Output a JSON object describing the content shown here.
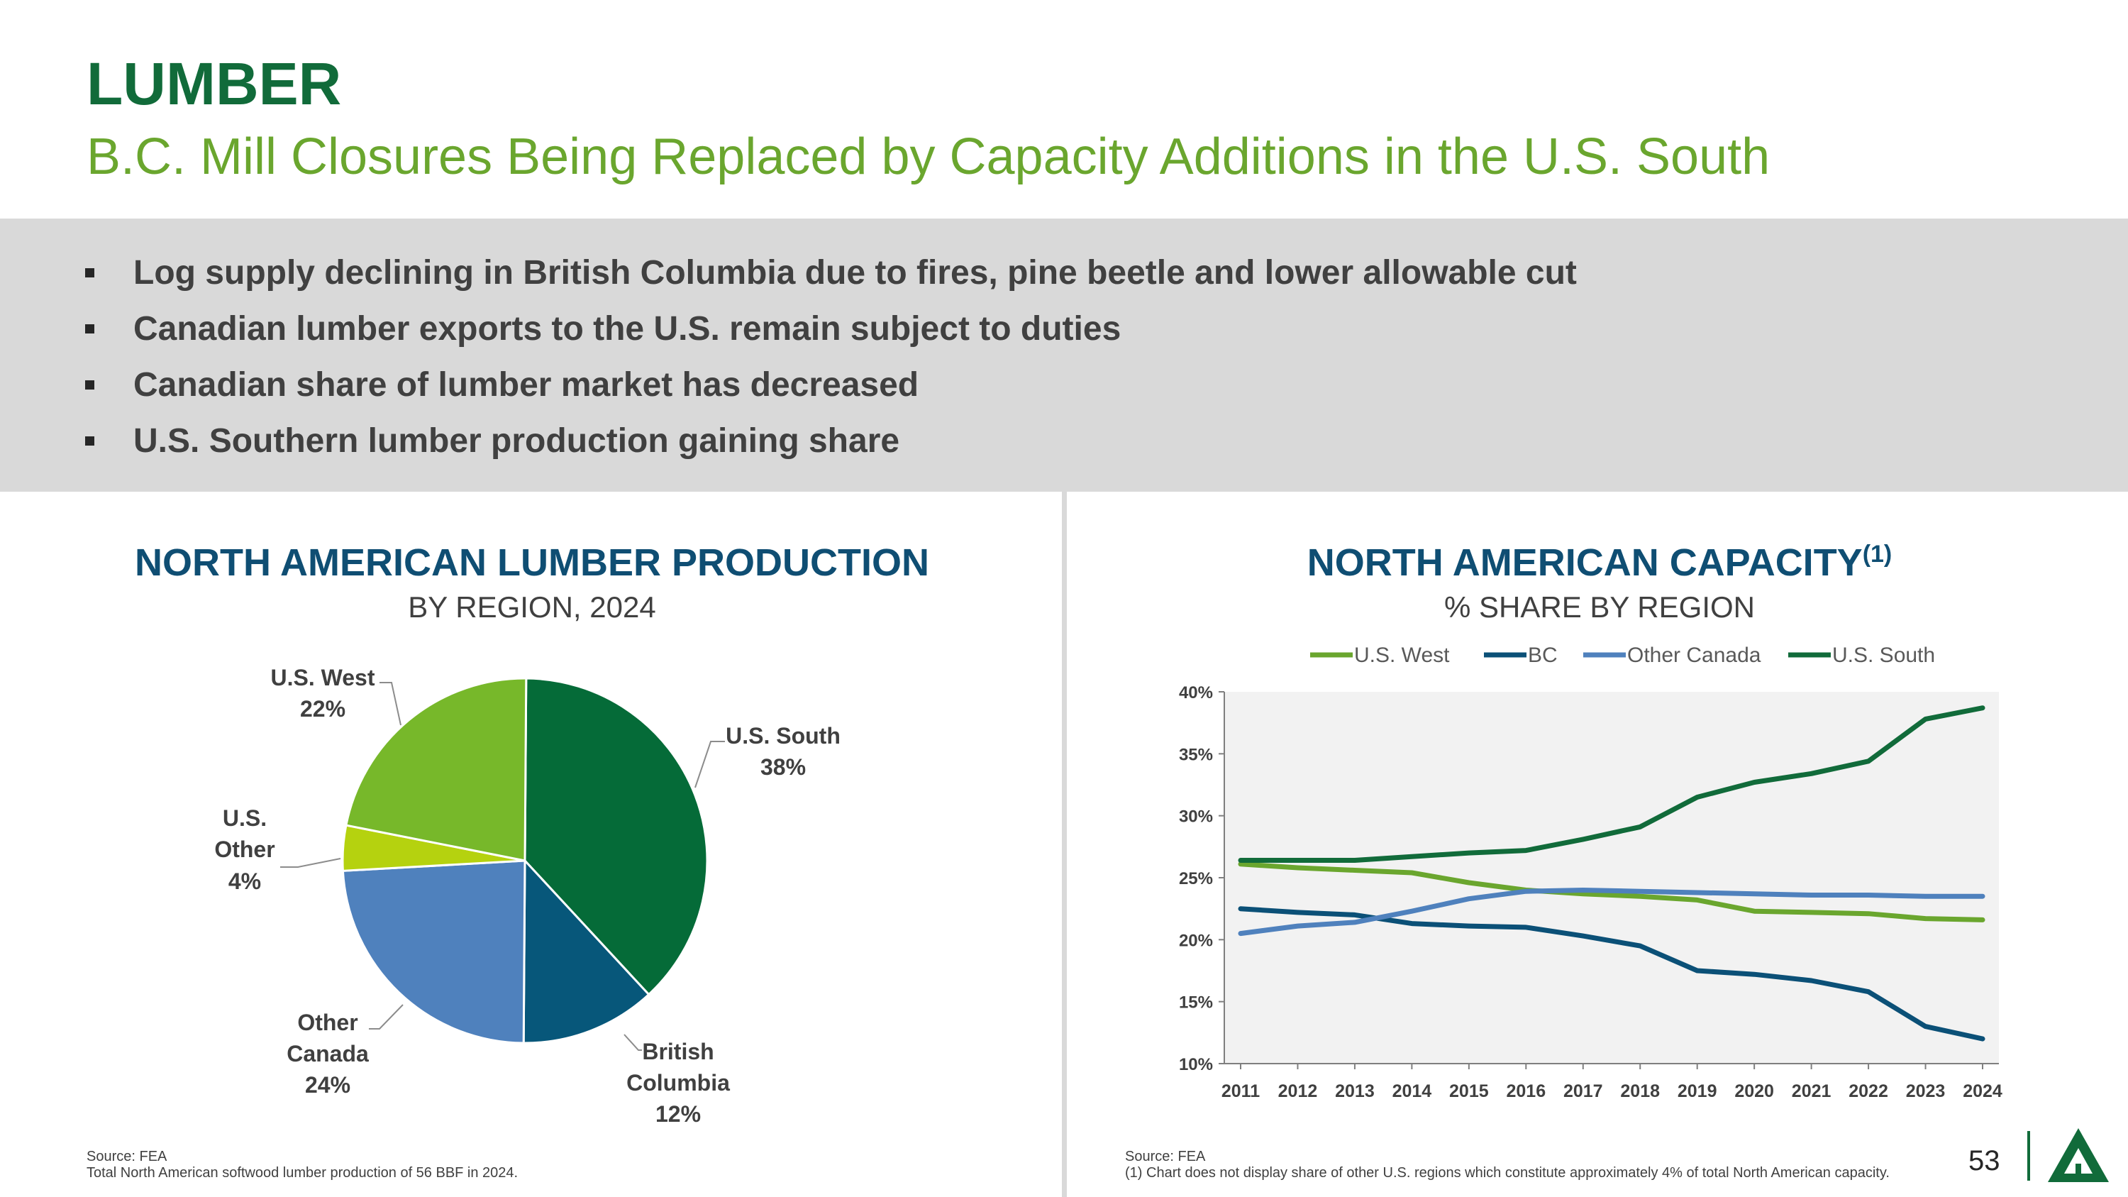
{
  "header": {
    "title": "LUMBER",
    "subtitle": "B.C. Mill Closures Being Replaced by Capacity Additions in the U.S. South"
  },
  "bullets": [
    "Log supply declining in British Columbia due to fires, pine beetle and lower allowable cut",
    "Canadian lumber exports to the U.S. remain subject to duties",
    "Canadian share of lumber market has decreased",
    "U.S. Southern lumber production gaining share"
  ],
  "left_panel": {
    "title": "NORTH AMERICAN LUMBER PRODUCTION",
    "subtitle": "BY REGION, 2024",
    "source": "Source: FEA",
    "note": "Total North American softwood lumber production of 56 BBF in 2024."
  },
  "right_panel": {
    "title": "NORTH AMERICAN CAPACITY",
    "title_sup": "(1)",
    "subtitle": "% SHARE BY REGION",
    "source": "Source: FEA",
    "note": "(1) Chart does not display share of other U.S. regions which constitute approximately 4% of total North American capacity."
  },
  "page_number": "53",
  "logo_icon": "tree-triangle-logo-icon",
  "chart_data": [
    {
      "type": "pie",
      "title": "NORTH AMERICAN LUMBER PRODUCTION",
      "subtitle": "BY REGION, 2024",
      "slices": [
        {
          "label": "U.S. South",
          "value": 38,
          "value_label": "38%",
          "color": "#056b38"
        },
        {
          "label": "British Columbia",
          "value": 12,
          "value_label": "12%",
          "color": "#07577a"
        },
        {
          "label": "Other Canada",
          "value": 24,
          "value_label": "24%",
          "color": "#4f81bd"
        },
        {
          "label": "U.S. Other",
          "value": 4,
          "value_label": "4%",
          "color": "#b5d20f"
        },
        {
          "label": "U.S. West",
          "value": 22,
          "value_label": "22%",
          "color": "#77b82a"
        }
      ]
    },
    {
      "type": "line",
      "title": "NORTH AMERICAN CAPACITY",
      "subtitle": "% SHARE BY REGION",
      "x": [
        "2011",
        "2012",
        "2013",
        "2014",
        "2015",
        "2016",
        "2017",
        "2018",
        "2019",
        "2020",
        "2021",
        "2022",
        "2023",
        "2024"
      ],
      "ylim": [
        10,
        40
      ],
      "yticks": [
        "10%",
        "15%",
        "20%",
        "25%",
        "30%",
        "35%",
        "40%"
      ],
      "legend_position": "top",
      "series": [
        {
          "name": "U.S. West",
          "color": "#6aa62e",
          "values": [
            26.1,
            25.8,
            25.6,
            25.4,
            24.6,
            24.0,
            23.7,
            23.5,
            23.2,
            22.3,
            22.2,
            22.1,
            21.7,
            21.6
          ]
        },
        {
          "name": "BC",
          "color": "#0b5077",
          "values": [
            22.5,
            22.2,
            22.0,
            21.3,
            21.1,
            21.0,
            20.3,
            19.5,
            17.5,
            17.2,
            16.7,
            15.8,
            13.0,
            12.0
          ]
        },
        {
          "name": "Other Canada",
          "color": "#4f81bd",
          "values": [
            20.5,
            21.1,
            21.4,
            22.3,
            23.3,
            23.9,
            24.0,
            23.9,
            23.8,
            23.7,
            23.6,
            23.6,
            23.5,
            23.5
          ]
        },
        {
          "name": "U.S. South",
          "color": "#116b3a",
          "values": [
            26.4,
            26.4,
            26.4,
            26.7,
            27.0,
            27.2,
            28.1,
            29.1,
            31.5,
            32.7,
            33.4,
            34.4,
            37.8,
            38.7
          ]
        }
      ]
    }
  ]
}
